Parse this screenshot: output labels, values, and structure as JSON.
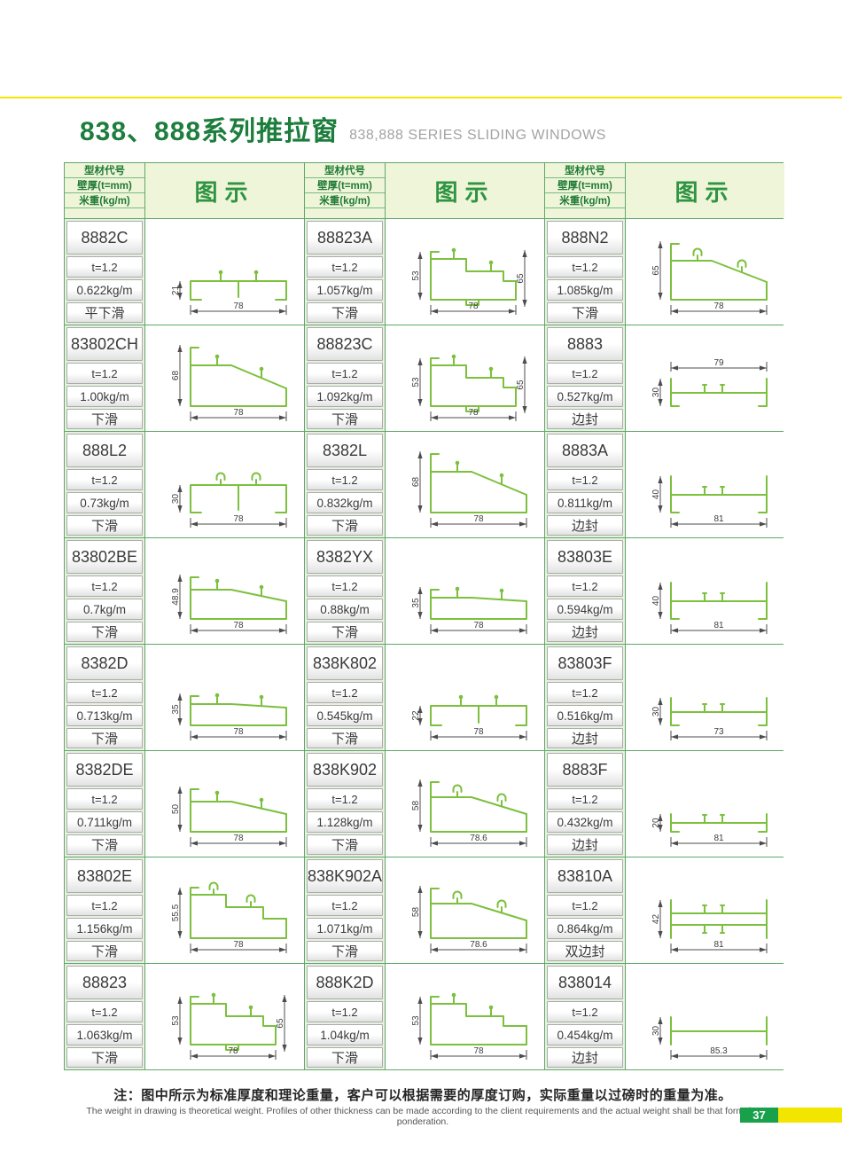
{
  "page": {
    "title_cn": "838、888系列推拉窗",
    "title_en": "838,888 SERIES SLIDING WINDOWS",
    "note_cn": "注：图中所示为标准厚度和理论重量，客户可以根据需要的厚度订购，实际重量以过磅时的重量为准。",
    "note_en": "The weight in drawing is theoretical weight. Profiles of other thickness can be made according to the client requirements and the actual weight shall be that form the ponderation.",
    "page_number": "37"
  },
  "header": {
    "col_code": "型材代号",
    "col_thickness": "壁厚(t=mm)",
    "col_weight": "米重(kg/m)",
    "col_diagram": "图示"
  },
  "colors": {
    "title_green": "#1d7d3c",
    "header_bg": "#eff5d9",
    "grid_green": "#5fa86a",
    "profile_green": "#7cc03e",
    "accent_yellow": "#f2e600",
    "page_badge_green": "#18a04b"
  },
  "columns": [
    {
      "items": [
        {
          "code": "8882C",
          "thickness": "t=1.2",
          "weight": "0.622kg/m",
          "use": "平下滑",
          "shape": "flat",
          "dims": {
            "h": "21",
            "w": "78"
          }
        },
        {
          "code": "83802CH",
          "thickness": "t=1.2",
          "weight": "1.00kg/m",
          "use": "下滑",
          "shape": "slope",
          "dims": {
            "h": "68",
            "w": "78"
          }
        },
        {
          "code": "888L2",
          "thickness": "t=1.2",
          "weight": "0.73kg/m",
          "use": "下滑",
          "shape": "flat",
          "hooks": true,
          "dims": {
            "h": "30",
            "w": "78"
          }
        },
        {
          "code": "83802BE",
          "thickness": "t=1.2",
          "weight": "0.7kg/m",
          "use": "下滑",
          "shape": "slope",
          "dims": {
            "h": "48.9",
            "w": "78"
          }
        },
        {
          "code": "8382D",
          "thickness": "t=1.2",
          "weight": "0.713kg/m",
          "use": "下滑",
          "shape": "slope",
          "dims": {
            "h": "35",
            "w": "78"
          }
        },
        {
          "code": "8382DE",
          "thickness": "t=1.2",
          "weight": "0.711kg/m",
          "use": "下滑",
          "shape": "slope",
          "dims": {
            "h": "50",
            "w": "78"
          }
        },
        {
          "code": "83802E",
          "thickness": "t=1.2",
          "weight": "1.156kg/m",
          "use": "下滑",
          "shape": "step",
          "hooks": true,
          "dims": {
            "h": "55.5",
            "w": "78"
          }
        },
        {
          "code": "88823",
          "thickness": "t=1.2",
          "weight": "1.063kg/m",
          "use": "下滑",
          "shape": "step",
          "dims": {
            "h": "53",
            "h2": "65",
            "w": "78"
          }
        }
      ]
    },
    {
      "items": [
        {
          "code": "88823A",
          "thickness": "t=1.2",
          "weight": "1.057kg/m",
          "use": "下滑",
          "shape": "step",
          "dims": {
            "h": "53",
            "h2": "65",
            "w": "78"
          }
        },
        {
          "code": "88823C",
          "thickness": "t=1.2",
          "weight": "1.092kg/m",
          "use": "下滑",
          "shape": "step",
          "dims": {
            "h": "53",
            "h2": "65",
            "w": "78"
          }
        },
        {
          "code": "8382L",
          "thickness": "t=1.2",
          "weight": "0.832kg/m",
          "use": "下滑",
          "shape": "slope",
          "dims": {
            "h": "68",
            "w": "78"
          }
        },
        {
          "code": "8382YX",
          "thickness": "t=1.2",
          "weight": "0.88kg/m",
          "use": "下滑",
          "shape": "slope",
          "dims": {
            "h": "35",
            "w": "78"
          }
        },
        {
          "code": "838K802",
          "thickness": "t=1.2",
          "weight": "0.545kg/m",
          "use": "下滑",
          "shape": "flat",
          "dims": {
            "h": "22",
            "w": "78"
          }
        },
        {
          "code": "838K902",
          "thickness": "t=1.2",
          "weight": "1.128kg/m",
          "use": "下滑",
          "shape": "slope",
          "hooks": true,
          "dims": {
            "h": "58",
            "w": "78.6"
          }
        },
        {
          "code": "838K902A",
          "thickness": "t=1.2",
          "weight": "1.071kg/m",
          "use": "下滑",
          "shape": "slope",
          "hooks": true,
          "dims": {
            "h": "58",
            "w": "78.6"
          }
        },
        {
          "code": "888K2D",
          "thickness": "t=1.2",
          "weight": "1.04kg/m",
          "use": "下滑",
          "shape": "step",
          "dims": {
            "h": "53",
            "w": "78"
          }
        }
      ]
    },
    {
      "items": [
        {
          "code": "888N2",
          "thickness": "t=1.2",
          "weight": "1.085kg/m",
          "use": "下滑",
          "shape": "slope",
          "hooks": true,
          "dims": {
            "h": "65",
            "w": "78"
          }
        },
        {
          "code": "8883",
          "thickness": "t=1.2",
          "weight": "0.527kg/m",
          "use": "边封",
          "shape": "channel",
          "dim_top": true,
          "dims": {
            "h": "30",
            "w": "79"
          }
        },
        {
          "code": "8883A",
          "thickness": "t=1.2",
          "weight": "0.811kg/m",
          "use": "边封",
          "shape": "channel",
          "dims": {
            "h": "40",
            "w": "81"
          }
        },
        {
          "code": "83803E",
          "thickness": "t=1.2",
          "weight": "0.594kg/m",
          "use": "边封",
          "shape": "channel",
          "dims": {
            "h": "40",
            "w": "81"
          }
        },
        {
          "code": "83803F",
          "thickness": "t=1.2",
          "weight": "0.516kg/m",
          "use": "边封",
          "shape": "channel",
          "dims": {
            "h": "30",
            "w": "73"
          }
        },
        {
          "code": "8883F",
          "thickness": "t=1.2",
          "weight": "0.432kg/m",
          "use": "边封",
          "shape": "channel",
          "dims": {
            "h": "20",
            "w": "81"
          }
        },
        {
          "code": "83810A",
          "thickness": "t=1.2",
          "weight": "0.864kg/m",
          "use": "双边封",
          "shape": "double",
          "dims": {
            "h": "42",
            "w": "81"
          }
        },
        {
          "code": "838014",
          "thickness": "t=1.2",
          "weight": "0.454kg/m",
          "use": "边封",
          "shape": "ibeam",
          "dims": {
            "h": "30",
            "w": "85.3"
          }
        }
      ]
    }
  ]
}
